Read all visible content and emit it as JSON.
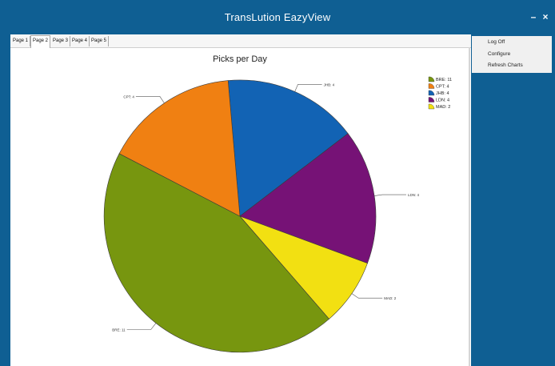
{
  "window": {
    "title": "TransLution EazyView",
    "minimize_label": "–",
    "close_label": "×"
  },
  "tabs": [
    {
      "label": "Page 1",
      "active": false
    },
    {
      "label": "Page 2",
      "active": true
    },
    {
      "label": "Page 3",
      "active": false
    },
    {
      "label": "Page 4",
      "active": false
    },
    {
      "label": "Page 5",
      "active": false
    }
  ],
  "side_menu": {
    "items": [
      "Log Off",
      "Configure",
      "Refresh Charts"
    ]
  },
  "colors": {
    "titlebar": "#0f5f93",
    "BRE": "#77960f",
    "CPT": "#f08012",
    "JHB": "#1263b4",
    "LDN": "#761276",
    "MAD": "#f2e012"
  },
  "chart_data": {
    "type": "pie",
    "title": "Picks per Day",
    "categories": [
      "BRE",
      "CPT",
      "JHB",
      "LDN",
      "MAD"
    ],
    "values": [
      11,
      4,
      4,
      4,
      2
    ],
    "slice_labels": [
      "BRE: 11",
      "CPT: 4",
      "JHB: 4",
      "LDN: 4",
      "MAD: 2"
    ],
    "legend": [
      "BRE: 11",
      "CPT: 4",
      "JHB: 4",
      "LDN: 4",
      "MAD: 2"
    ],
    "legend_position": "top-right"
  }
}
